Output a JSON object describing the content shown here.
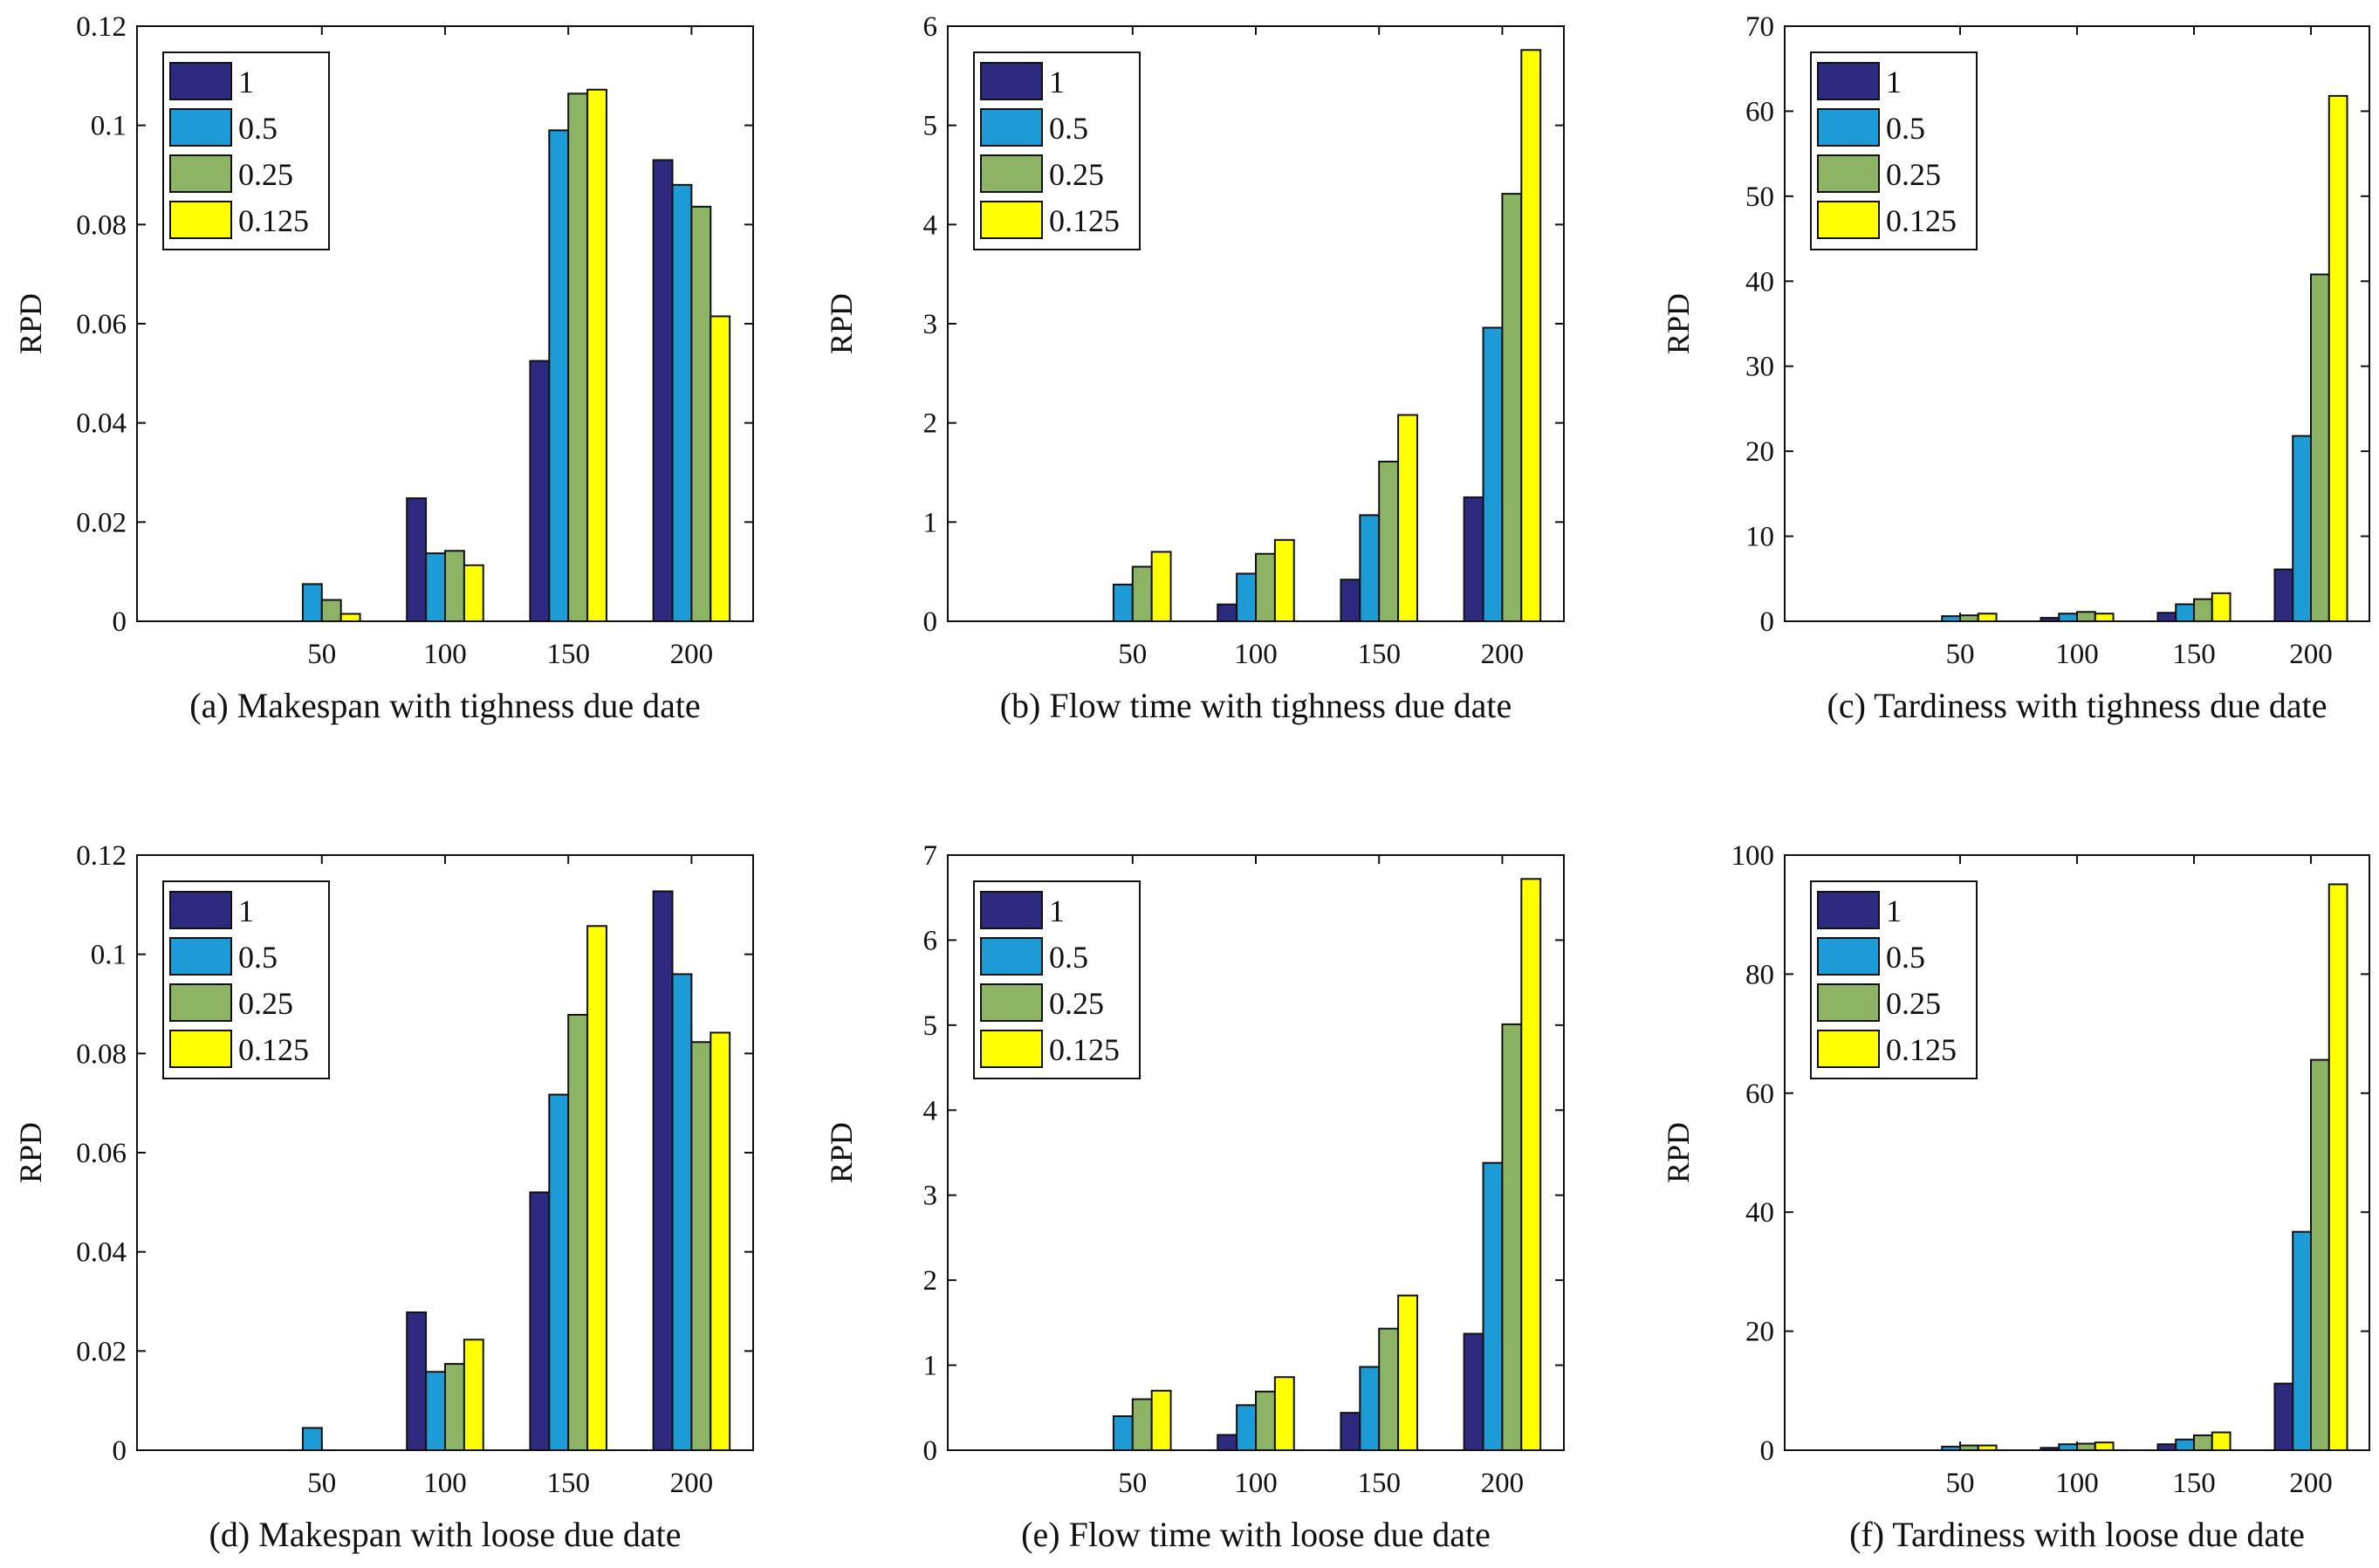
{
  "figure": {
    "ylabel": "RPD",
    "categories": [
      "50",
      "100",
      "150",
      "200"
    ],
    "legend": [
      "1",
      "0.5",
      "0.25",
      "0.125"
    ],
    "colors": [
      "#2E2A80",
      "#1C9BD6",
      "#8DB465",
      "#FFFF00"
    ]
  },
  "chart_data": [
    {
      "type": "bar",
      "title": "(a) Makespan with tighness due date",
      "xlabel": "",
      "ylabel": "RPD",
      "categories": [
        "50",
        "100",
        "150",
        "200"
      ],
      "ylim": [
        0,
        0.12
      ],
      "yticks": [
        0,
        0.02,
        0.04,
        0.06,
        0.08,
        0.1,
        0.12
      ],
      "ytick_labels": [
        "0",
        "0.02",
        "0.04",
        "0.06",
        "0.08",
        "0.1",
        "0.12"
      ],
      "legend_position": "top-left",
      "series": [
        {
          "name": "1",
          "values": [
            0,
            0.0248,
            0.0525,
            0.093
          ]
        },
        {
          "name": "0.5",
          "values": [
            0.0075,
            0.0137,
            0.099,
            0.088
          ]
        },
        {
          "name": "0.25",
          "values": [
            0.0043,
            0.0142,
            0.1064,
            0.0836
          ]
        },
        {
          "name": "0.125",
          "values": [
            0.0015,
            0.0113,
            0.1072,
            0.0615
          ]
        }
      ]
    },
    {
      "type": "bar",
      "title": "(b) Flow time with tighness due date",
      "xlabel": "",
      "ylabel": "RPD",
      "categories": [
        "50",
        "100",
        "150",
        "200"
      ],
      "ylim": [
        0,
        6
      ],
      "yticks": [
        0,
        1,
        2,
        3,
        4,
        5,
        6
      ],
      "ytick_labels": [
        "0",
        "1",
        "2",
        "3",
        "4",
        "5",
        "6"
      ],
      "legend_position": "top-left",
      "series": [
        {
          "name": "1",
          "values": [
            0,
            0.17,
            0.42,
            1.25
          ]
        },
        {
          "name": "0.5",
          "values": [
            0.37,
            0.48,
            1.07,
            2.96
          ]
        },
        {
          "name": "0.25",
          "values": [
            0.55,
            0.68,
            1.61,
            4.31
          ]
        },
        {
          "name": "0.125",
          "values": [
            0.7,
            0.82,
            2.08,
            5.76
          ]
        }
      ]
    },
    {
      "type": "bar",
      "title": "(c) Tardiness with tighness due date",
      "xlabel": "",
      "ylabel": "RPD",
      "categories": [
        "50",
        "100",
        "150",
        "200"
      ],
      "ylim": [
        0,
        70
      ],
      "yticks": [
        0,
        10,
        20,
        30,
        40,
        50,
        60,
        70
      ],
      "ytick_labels": [
        "0",
        "10",
        "20",
        "30",
        "40",
        "50",
        "60",
        "70"
      ],
      "legend_position": "top-left",
      "series": [
        {
          "name": "1",
          "values": [
            0,
            0.4,
            1.0,
            6.1
          ]
        },
        {
          "name": "0.5",
          "values": [
            0.6,
            0.9,
            2.0,
            21.8
          ]
        },
        {
          "name": "0.25",
          "values": [
            0.7,
            1.1,
            2.6,
            40.8
          ]
        },
        {
          "name": "0.125",
          "values": [
            0.9,
            0.9,
            3.3,
            61.8
          ]
        }
      ]
    },
    {
      "type": "bar",
      "title": "(d) Makespan with loose due date",
      "xlabel": "",
      "ylabel": "RPD",
      "categories": [
        "50",
        "100",
        "150",
        "200"
      ],
      "ylim": [
        0,
        0.12
      ],
      "yticks": [
        0,
        0.02,
        0.04,
        0.06,
        0.08,
        0.1,
        0.12
      ],
      "ytick_labels": [
        "0",
        "0.02",
        "0.04",
        "0.06",
        "0.08",
        "0.1",
        "0.12"
      ],
      "legend_position": "top-left",
      "series": [
        {
          "name": "1",
          "values": [
            0,
            0.0278,
            0.052,
            0.1127
          ]
        },
        {
          "name": "0.5",
          "values": [
            0.0045,
            0.0158,
            0.0717,
            0.096
          ]
        },
        {
          "name": "0.25",
          "values": [
            0,
            0.0174,
            0.0878,
            0.0823
          ]
        },
        {
          "name": "0.125",
          "values": [
            0,
            0.0223,
            0.1057,
            0.0842
          ]
        }
      ]
    },
    {
      "type": "bar",
      "title": "(e) Flow time with loose due date",
      "xlabel": "",
      "ylabel": "RPD",
      "categories": [
        "50",
        "100",
        "150",
        "200"
      ],
      "ylim": [
        0,
        7
      ],
      "yticks": [
        0,
        1,
        2,
        3,
        4,
        5,
        6,
        7
      ],
      "ytick_labels": [
        "0",
        "1",
        "2",
        "3",
        "4",
        "5",
        "6",
        "7"
      ],
      "legend_position": "top-left",
      "series": [
        {
          "name": "1",
          "values": [
            0,
            0.18,
            0.44,
            1.37
          ]
        },
        {
          "name": "0.5",
          "values": [
            0.4,
            0.53,
            0.98,
            3.38
          ]
        },
        {
          "name": "0.25",
          "values": [
            0.6,
            0.69,
            1.43,
            5.01
          ]
        },
        {
          "name": "0.125",
          "values": [
            0.7,
            0.86,
            1.82,
            6.72
          ]
        }
      ]
    },
    {
      "type": "bar",
      "title": "(f) Tardiness with loose due date",
      "xlabel": "",
      "ylabel": "RPD",
      "categories": [
        "50",
        "100",
        "150",
        "200"
      ],
      "ylim": [
        0,
        100
      ],
      "yticks": [
        0,
        20,
        40,
        60,
        80,
        100
      ],
      "ytick_labels": [
        "0",
        "20",
        "40",
        "60",
        "80",
        "100"
      ],
      "legend_position": "top-left",
      "series": [
        {
          "name": "1",
          "values": [
            0,
            0.4,
            1.0,
            11.2
          ]
        },
        {
          "name": "0.5",
          "values": [
            0.6,
            1.0,
            1.8,
            36.7
          ]
        },
        {
          "name": "0.25",
          "values": [
            0.8,
            1.1,
            2.5,
            65.6
          ]
        },
        {
          "name": "0.125",
          "values": [
            0.8,
            1.3,
            3.0,
            95.1
          ]
        }
      ]
    }
  ]
}
